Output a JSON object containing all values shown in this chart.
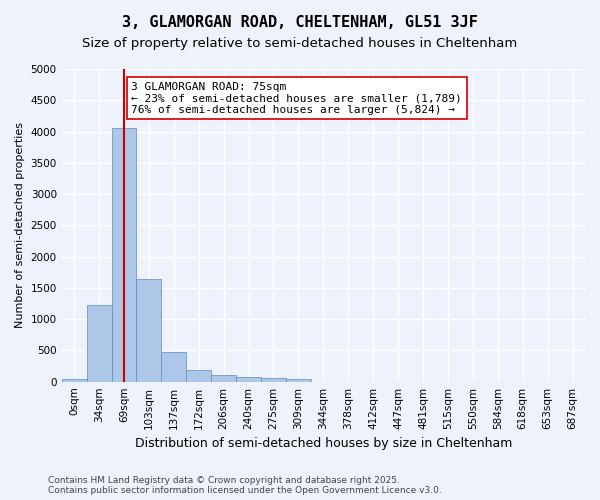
{
  "title": "3, GLAMORGAN ROAD, CHELTENHAM, GL51 3JF",
  "subtitle": "Size of property relative to semi-detached houses in Cheltenham",
  "xlabel": "Distribution of semi-detached houses by size in Cheltenham",
  "ylabel": "Number of semi-detached properties",
  "bar_values": [
    50,
    1230,
    4050,
    1640,
    480,
    185,
    110,
    70,
    60,
    50,
    0,
    0,
    0,
    0,
    0,
    0,
    0,
    0,
    0,
    0,
    0
  ],
  "categories": [
    "0sqm",
    "34sqm",
    "69sqm",
    "103sqm",
    "137sqm",
    "172sqm",
    "206sqm",
    "240sqm",
    "275sqm",
    "309sqm",
    "344sqm",
    "378sqm",
    "412sqm",
    "447sqm",
    "481sqm",
    "515sqm",
    "550sqm",
    "584sqm",
    "618sqm",
    "653sqm",
    "687sqm"
  ],
  "bar_color": "#aec6e8",
  "bar_edge_color": "#5a8fc0",
  "vline_x": 2,
  "vline_color": "#cc0000",
  "annotation_text": "3 GLAMORGAN ROAD: 75sqm\n← 23% of semi-detached houses are smaller (1,789)\n76% of semi-detached houses are larger (5,824) →",
  "annotation_box_color": "#ffffff",
  "annotation_box_edge": "#cc0000",
  "ylim": [
    0,
    5000
  ],
  "yticks": [
    0,
    500,
    1000,
    1500,
    2000,
    2500,
    3000,
    3500,
    4000,
    4500,
    5000
  ],
  "background_color": "#eef2fb",
  "grid_color": "#ffffff",
  "footer_text": "Contains HM Land Registry data © Crown copyright and database right 2025.\nContains public sector information licensed under the Open Government Licence v3.0.",
  "title_fontsize": 11,
  "subtitle_fontsize": 9.5,
  "xlabel_fontsize": 9,
  "ylabel_fontsize": 8,
  "tick_fontsize": 7.5,
  "annotation_fontsize": 8,
  "footer_fontsize": 6.5
}
